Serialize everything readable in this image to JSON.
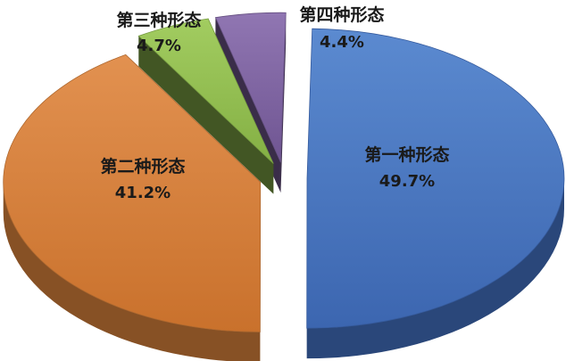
{
  "chart_data": {
    "type": "pie",
    "title": "",
    "labels": [
      "第一种形态",
      "第二种形态",
      "第三种形态",
      "第四种形态"
    ],
    "values": [
      49.7,
      41.2,
      4.7,
      4.4
    ],
    "value_labels": [
      "49.7%",
      "41.2%",
      "4.7%",
      "4.4%"
    ],
    "colors": [
      "#4472c4",
      "#d9823b",
      "#92c050",
      "#8064a2"
    ],
    "legend": "none",
    "exploded": true,
    "three_d": true
  }
}
